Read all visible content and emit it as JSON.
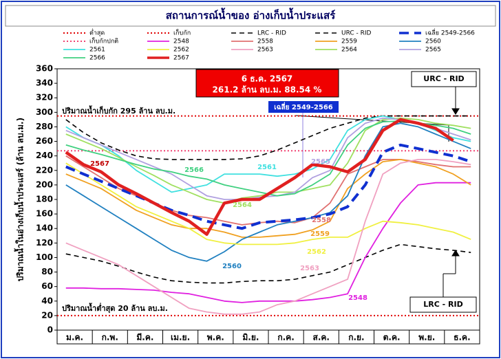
{
  "chart_data": {
    "type": "line",
    "title": "สถานการณ์น้ำของ อ่างเก็บน้ำประแสร์",
    "y_label": "ปริมาณน้ำในอ่างเก็บน้ำประแสร์ (ล้าน ลบ.ม.)",
    "categories": [
      "ม.ค.",
      null,
      "ก.พ.",
      null,
      "มี.ค.",
      null,
      "เม.ย.",
      null,
      "พ.ค.",
      null,
      "มิ.ย.",
      null,
      "ก.ค.",
      null,
      "ส.ค.",
      null,
      "ก.ย.",
      null,
      "ต.ค.",
      null,
      "พ.ย.",
      null,
      "ธ.ค.",
      null
    ],
    "ylim": [
      0,
      360
    ],
    "yticks": [
      0,
      20,
      40,
      60,
      80,
      100,
      120,
      140,
      160,
      180,
      200,
      220,
      240,
      260,
      280,
      300,
      320,
      340,
      360
    ],
    "reference_lines": [
      {
        "name": "ต่ำสุด",
        "color": "#e00000",
        "value": 20,
        "line_style": "dotted"
      },
      {
        "name": "เก็บกัก",
        "color": "#e00000",
        "value": 295,
        "line_style": "dotted"
      },
      {
        "name": "เก็บกักปกติ",
        "color": "#f04070",
        "value": 247,
        "line_style": "dotted"
      }
    ],
    "series": [
      {
        "name": "LRC - RID",
        "color": "#000000",
        "line_style": "dashed",
        "values": [
          105,
          100,
          95,
          88,
          80,
          73,
          68,
          66,
          65,
          65,
          67,
          68,
          68,
          70,
          75,
          80,
          90,
          100,
          110,
          118,
          115,
          112,
          110,
          107
        ]
      },
      {
        "name": "URC - RID",
        "color": "#000000",
        "line_style": "dashed",
        "values": [
          290,
          272,
          258,
          248,
          240,
          236,
          235,
          235,
          235,
          235,
          236,
          240,
          248,
          258,
          268,
          278,
          285,
          292,
          295,
          295,
          295,
          295,
          295,
          295
        ]
      },
      {
        "name": "เฉลี่ย 2549-2566",
        "color": "#1030d0",
        "line_style": "dashed-bold",
        "values": [
          225,
          215,
          205,
          195,
          185,
          175,
          165,
          158,
          150,
          145,
          140,
          148,
          150,
          152,
          155,
          160,
          170,
          200,
          245,
          255,
          250,
          245,
          240,
          232
        ]
      },
      {
        "name": "2548",
        "color": "#e020e0",
        "line_style": "solid",
        "values": [
          58,
          58,
          57,
          57,
          56,
          55,
          52,
          50,
          45,
          40,
          38,
          40,
          40,
          40,
          42,
          45,
          50,
          100,
          140,
          175,
          200,
          203,
          203,
          203
        ]
      },
      {
        "name": "2558",
        "color": "#e07070",
        "line_style": "solid",
        "values": [
          240,
          225,
          210,
          195,
          185,
          175,
          165,
          158,
          155,
          150,
          145,
          148,
          150,
          148,
          155,
          175,
          215,
          225,
          235,
          235,
          232,
          228,
          225,
          225
        ]
      },
      {
        "name": "2559",
        "color": "#f0a020",
        "line_style": "solid",
        "values": [
          215,
          205,
          195,
          180,
          165,
          155,
          145,
          140,
          140,
          135,
          128,
          128,
          130,
          132,
          138,
          150,
          195,
          215,
          232,
          235,
          230,
          225,
          215,
          200
        ]
      },
      {
        "name": "2560",
        "color": "#2080c0",
        "line_style": "solid",
        "values": [
          200,
          185,
          170,
          155,
          140,
          125,
          110,
          100,
          95,
          108,
          125,
          135,
          145,
          150,
          155,
          162,
          185,
          240,
          280,
          285,
          280,
          270,
          260,
          250
        ]
      },
      {
        "name": "2561",
        "color": "#40e0e0",
        "line_style": "solid",
        "values": [
          280,
          265,
          255,
          240,
          220,
          205,
          190,
          195,
          200,
          215,
          215,
          215,
          212,
          215,
          222,
          235,
          275,
          290,
          295,
          290,
          285,
          275,
          265,
          260
        ]
      },
      {
        "name": "2562",
        "color": "#f0f040",
        "line_style": "solid",
        "values": [
          230,
          215,
          200,
          185,
          170,
          160,
          150,
          140,
          125,
          120,
          118,
          118,
          118,
          120,
          125,
          128,
          128,
          140,
          150,
          148,
          145,
          140,
          135,
          125
        ]
      },
      {
        "name": "2563",
        "color": "#f0a0c0",
        "line_style": "solid",
        "values": [
          120,
          110,
          100,
          90,
          75,
          60,
          45,
          30,
          25,
          22,
          22,
          25,
          35,
          40,
          50,
          60,
          70,
          150,
          215,
          230,
          235,
          235,
          232,
          228
        ]
      },
      {
        "name": "2564",
        "color": "#a0e060",
        "line_style": "solid",
        "values": [
          270,
          260,
          250,
          238,
          225,
          213,
          200,
          190,
          180,
          175,
          182,
          185,
          190,
          190,
          195,
          200,
          230,
          275,
          290,
          292,
          290,
          285,
          282,
          278
        ]
      },
      {
        "name": "2565",
        "color": "#b0a0e0",
        "line_style": "solid",
        "values": [
          275,
          265,
          255,
          245,
          235,
          225,
          215,
          200,
          185,
          180,
          180,
          183,
          185,
          190,
          210,
          220,
          265,
          285,
          292,
          290,
          285,
          278,
          270,
          262
        ]
      },
      {
        "name": "2566",
        "color": "#40d080",
        "line_style": "solid",
        "values": [
          255,
          248,
          242,
          235,
          228,
          222,
          218,
          212,
          208,
          200,
          195,
          190,
          185,
          188,
          200,
          215,
          255,
          278,
          287,
          288,
          285,
          282,
          278,
          270
        ]
      },
      {
        "name": "2567",
        "color": "#e02020",
        "line_style": "bold",
        "values": [
          245,
          228,
          218,
          200,
          188,
          175,
          162,
          150,
          132,
          175,
          180,
          180,
          195,
          210,
          228,
          225,
          218,
          235,
          275,
          290,
          285,
          278,
          261.2,
          null
        ]
      }
    ],
    "annotations": [
      "ปริมาณน้ำเก็บกัก 295 ล้าน ลบ.ม.",
      "ปริมาณน้ำต่ำสุด 20 ล้าน ลบ.ม.",
      "6 ธ.ค. 2567",
      "261.2 ล้าน ลบ.ม. 88.54 %",
      "เฉลี่ย 2549-2566",
      "URC - RID",
      "LRC - RID",
      "2567",
      "2566",
      "2561",
      "2564",
      "2565",
      "2558",
      "2559",
      "2562",
      "2563",
      "2560",
      "2548"
    ]
  }
}
